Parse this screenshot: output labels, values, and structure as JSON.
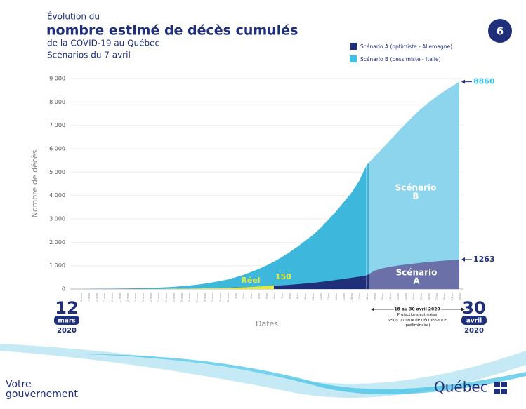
{
  "header": {
    "pretitle": "Évolution du",
    "title": "nombre estimé de décès cumulés",
    "subtitle": "de la COVID-19 au Québec",
    "date": "Scénarios du 7 avril",
    "page": "6"
  },
  "chart_data": {
    "type": "area",
    "categories": [
      "12 mars",
      "13 mars",
      "14 mars",
      "15 mars",
      "16 mars",
      "17 mars",
      "18 mars",
      "19 mars",
      "20 mars",
      "21 mars",
      "22 mars",
      "23 mars",
      "24 mars",
      "25 mars",
      "26 mars",
      "27 mars",
      "28 mars",
      "29 mars",
      "30 mars",
      "31 mars",
      "1 avr",
      "2 avr",
      "3 avr",
      "4 avr",
      "5 avr",
      "6 avr",
      "7 avr",
      "8 avr",
      "9 avr",
      "10 avr",
      "11 avr",
      "12 avr",
      "13 avr",
      "14 avr",
      "15 avr",
      "16 avr",
      "17 avr",
      "18 avr",
      "19 avr",
      "20 avr",
      "21 avr",
      "22 avr",
      "23 avr",
      "24 avr",
      "25 avr",
      "26 avr",
      "27 avr",
      "28 avr",
      "29 avr",
      "30 avr"
    ],
    "projection_start": "18 avr",
    "series": [
      {
        "name": "Scénario A (optimiste - Allemagne)",
        "color": "#1f2f7a",
        "projection_color": "#6b70a8",
        "legend_color": "#1f2f7a",
        "values": [
          1,
          1,
          2,
          2,
          3,
          4,
          5,
          6,
          7,
          9,
          11,
          13,
          16,
          19,
          23,
          28,
          34,
          40,
          48,
          57,
          67,
          78,
          90,
          105,
          120,
          138,
          158,
          180,
          205,
          235,
          265,
          300,
          340,
          385,
          430,
          480,
          530,
          580,
          780,
          880,
          950,
          1000,
          1045,
          1085,
          1120,
          1155,
          1185,
          1215,
          1240,
          1263
        ]
      },
      {
        "name": "Scénario B (pessimiste - Italie)",
        "color": "#3db7dc",
        "projection_color": "#8dd5ec",
        "legend_color": "#3cc0e6",
        "values": [
          5,
          7,
          9,
          12,
          15,
          19,
          24,
          30,
          38,
          48,
          60,
          75,
          95,
          120,
          150,
          185,
          230,
          280,
          340,
          410,
          500,
          600,
          720,
          850,
          1000,
          1170,
          1360,
          1570,
          1800,
          2050,
          2300,
          2600,
          2950,
          3300,
          3700,
          4100,
          4600,
          5300,
          5650,
          6000,
          6350,
          6700,
          7050,
          7380,
          7690,
          7970,
          8220,
          8450,
          8660,
          8860
        ]
      },
      {
        "name": "Réel",
        "color": "#e4ea3a",
        "values": [
          0,
          0,
          0,
          0,
          1,
          1,
          1,
          4,
          4,
          6,
          8,
          12,
          18,
          18,
          22,
          25,
          31,
          33,
          36,
          44,
          61,
          75,
          89,
          110,
          130,
          150,
          null,
          null,
          null,
          null,
          null,
          null,
          null,
          null,
          null,
          null,
          null,
          null,
          null,
          null,
          null,
          null,
          null,
          null,
          null,
          null,
          null,
          null,
          null,
          null
        ]
      }
    ],
    "area_labels": [
      [
        "Scénario",
        "A"
      ],
      [
        "Scénario",
        "B"
      ]
    ],
    "ylim": [
      0,
      9000
    ],
    "yticks": [
      0,
      {
        "value": 1000,
        "label": "1 000"
      },
      {
        "value": 2000,
        "label": "2 000"
      },
      {
        "value": 3000,
        "label": "3 000"
      },
      {
        "value": 4000,
        "label": "4 000"
      },
      {
        "value": 5000,
        "label": "5 000"
      },
      {
        "value": 6000,
        "label": "6 000"
      },
      {
        "value": 7000,
        "label": "7 000"
      },
      {
        "value": 8000,
        "label": "8 000"
      },
      {
        "value": 9000,
        "label": "9 000"
      }
    ],
    "grid": true,
    "xlabel": "Dates",
    "ylabel": "Nombre de décès",
    "start": {
      "day": "12",
      "month": "mars",
      "year": "2020"
    },
    "end": {
      "day": "30",
      "month": "avril",
      "year": "2020"
    },
    "projection_note": [
      "18 au 30 avril 2020",
      "Projections estimées",
      "selon un taux de décroissance",
      "(préliminaire)"
    ]
  },
  "footer": {
    "left": [
      "Votre",
      "gouvernement"
    ],
    "right": "Québec"
  }
}
